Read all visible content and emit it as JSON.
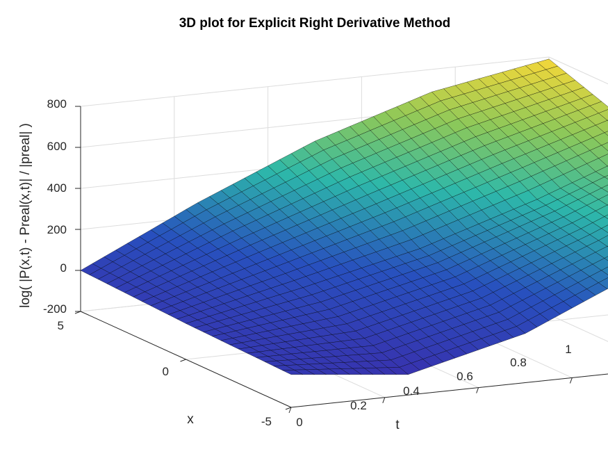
{
  "chart_data": {
    "type": "surface",
    "title": "3D plot for Explicit Right Derivative Method",
    "xlabel": "t",
    "ylabel": "x",
    "zlabel": "log( |P(x,t) - Preal(x,t)| / |preal| )",
    "t_ticks": [
      "0",
      "0.2",
      "0.4",
      "0.6",
      "0.8",
      "1"
    ],
    "x_ticks": [
      "5",
      "0",
      "-5"
    ],
    "z_ticks": [
      "800",
      "600",
      "400",
      "200",
      "0",
      "-200"
    ],
    "t_range": [
      0,
      1
    ],
    "x_range": [
      -5,
      5
    ],
    "z_range": [
      -200,
      800
    ],
    "grid": true,
    "colormap": "parula",
    "colors": {
      "low": "#3e26a8",
      "mid": "#2db8aa",
      "high": "#f9d838",
      "edge": "#000000"
    },
    "sampled_surface": {
      "t": [
        0,
        0.25,
        0.5,
        0.75,
        1
      ],
      "x": [
        5,
        0,
        -5
      ],
      "z": [
        [
          0,
          270,
          510,
          690,
          790
        ],
        [
          -25,
          90,
          220,
          400,
          610
        ],
        [
          -40,
          -100,
          40,
          290,
          560
        ]
      ]
    }
  }
}
